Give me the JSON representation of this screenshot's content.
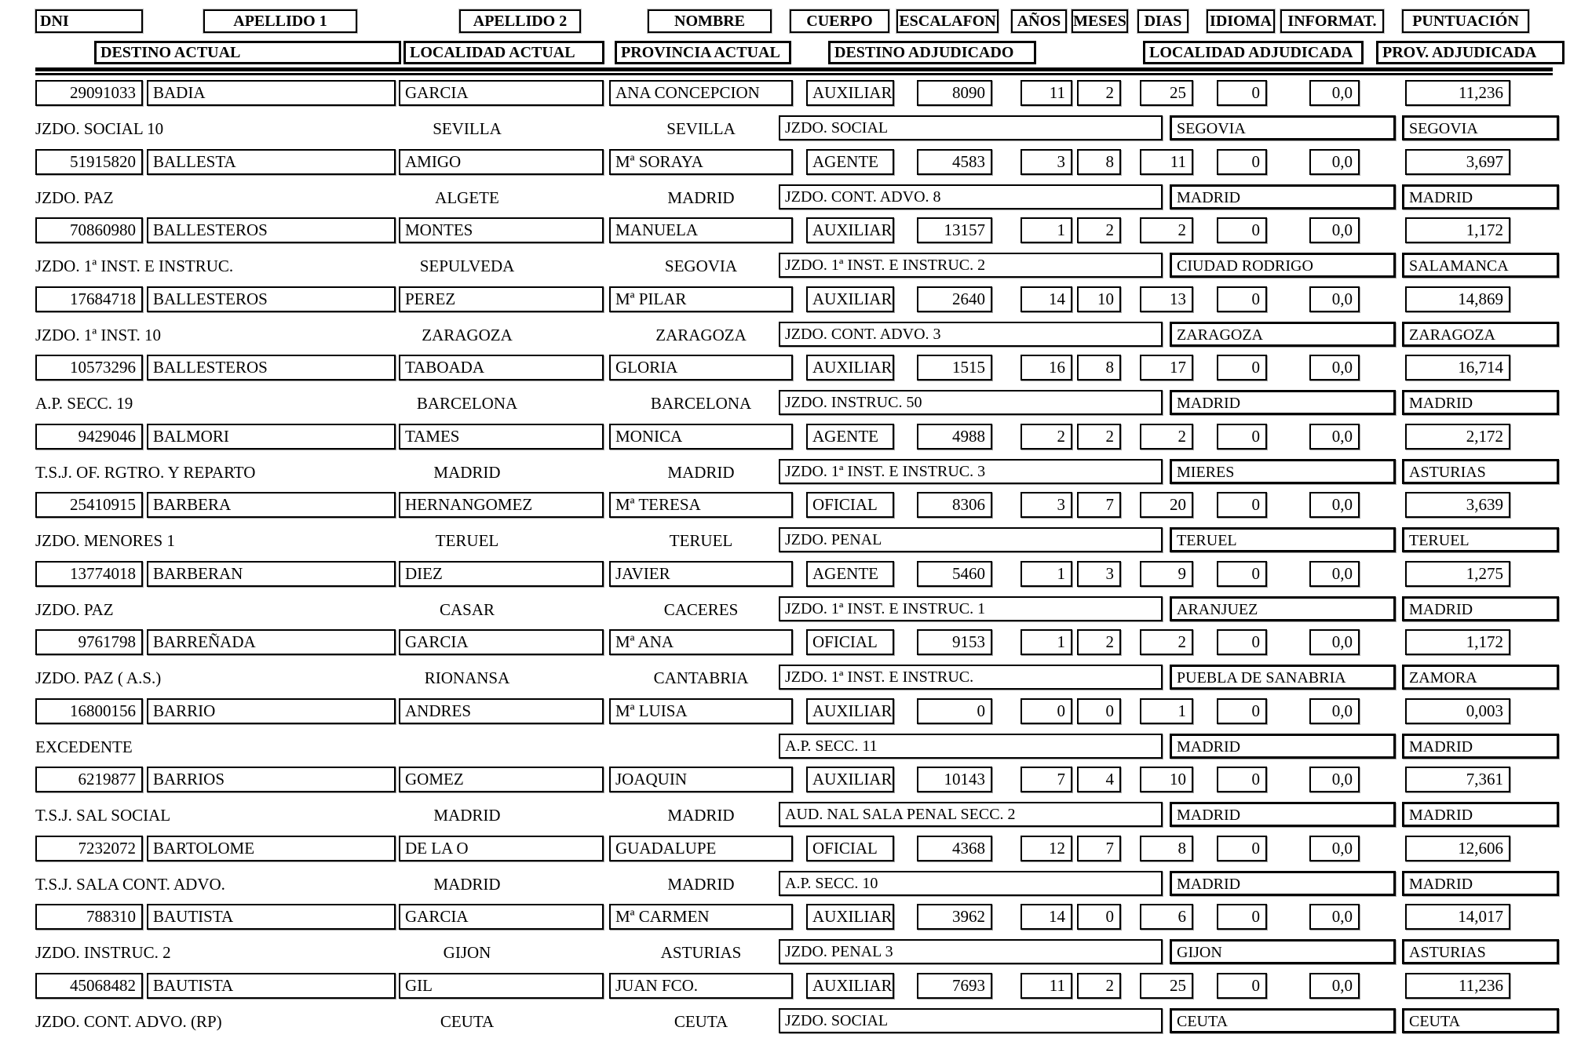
{
  "header": {
    "row1": [
      "DNI",
      "APELLIDO 1",
      "APELLIDO 2",
      "NOMBRE",
      "CUERPO",
      "ESCALAFON",
      "AÑOS",
      "MESES",
      "DIAS",
      "IDIOMA",
      "INFORMAT.",
      "PUNTUACIÓN"
    ],
    "row2": [
      "DESTINO ACTUAL",
      "LOCALIDAD ACTUAL",
      "PROVINCIA ACTUAL",
      "DESTINO ADJUDICADO",
      "LOCALIDAD ADJUDICADA",
      "PROV. ADJUDICADA"
    ]
  },
  "records": [
    {
      "dni": "29091033",
      "apellido1": "BADIA",
      "apellido2": "GARCIA",
      "nombre": "ANA CONCEPCION",
      "cuerpo": "AUXILIAR",
      "escalafon": "8090",
      "anos": "11",
      "meses": "2",
      "dias": "25",
      "idioma": "0",
      "informat": "0,0",
      "puntuacion": "11,236",
      "destino_actual": "JZDO. SOCIAL 10",
      "localidad_actual": "SEVILLA",
      "provincia_actual": "SEVILLA",
      "destino_adjudicado": "JZDO. SOCIAL",
      "localidad_adjudicada": "SEGOVIA",
      "prov_adjudicada": "SEGOVIA"
    },
    {
      "dni": "51915820",
      "apellido1": "BALLESTA",
      "apellido2": "AMIGO",
      "nombre": "Mª SORAYA",
      "cuerpo": "AGENTE",
      "escalafon": "4583",
      "anos": "3",
      "meses": "8",
      "dias": "11",
      "idioma": "0",
      "informat": "0,0",
      "puntuacion": "3,697",
      "destino_actual": "JZDO. PAZ",
      "localidad_actual": "ALGETE",
      "provincia_actual": "MADRID",
      "destino_adjudicado": "JZDO. CONT. ADVO. 8",
      "localidad_adjudicada": "MADRID",
      "prov_adjudicada": "MADRID"
    },
    {
      "dni": "70860980",
      "apellido1": "BALLESTEROS",
      "apellido2": "MONTES",
      "nombre": "MANUELA",
      "cuerpo": "AUXILIAR",
      "escalafon": "13157",
      "anos": "1",
      "meses": "2",
      "dias": "2",
      "idioma": "0",
      "informat": "0,0",
      "puntuacion": "1,172",
      "destino_actual": "JZDO. 1ª INST. E INSTRUC.",
      "localidad_actual": "SEPULVEDA",
      "provincia_actual": "SEGOVIA",
      "destino_adjudicado": "JZDO. 1ª INST. E INSTRUC. 2",
      "localidad_adjudicada": "CIUDAD RODRIGO",
      "prov_adjudicada": "SALAMANCA"
    },
    {
      "dni": "17684718",
      "apellido1": "BALLESTEROS",
      "apellido2": "PEREZ",
      "nombre": "Mª PILAR",
      "cuerpo": "AUXILIAR",
      "escalafon": "2640",
      "anos": "14",
      "meses": "10",
      "dias": "13",
      "idioma": "0",
      "informat": "0,0",
      "puntuacion": "14,869",
      "destino_actual": "JZDO. 1ª INST. 10",
      "localidad_actual": "ZARAGOZA",
      "provincia_actual": "ZARAGOZA",
      "destino_adjudicado": "JZDO. CONT. ADVO. 3",
      "localidad_adjudicada": "ZARAGOZA",
      "prov_adjudicada": "ZARAGOZA"
    },
    {
      "dni": "10573296",
      "apellido1": "BALLESTEROS",
      "apellido2": "TABOADA",
      "nombre": "GLORIA",
      "cuerpo": "AUXILIAR",
      "escalafon": "1515",
      "anos": "16",
      "meses": "8",
      "dias": "17",
      "idioma": "0",
      "informat": "0,0",
      "puntuacion": "16,714",
      "destino_actual": "A.P. SECC. 19",
      "localidad_actual": "BARCELONA",
      "provincia_actual": "BARCELONA",
      "destino_adjudicado": "JZDO. INSTRUC. 50",
      "localidad_adjudicada": "MADRID",
      "prov_adjudicada": "MADRID"
    },
    {
      "dni": "9429046",
      "apellido1": "BALMORI",
      "apellido2": "TAMES",
      "nombre": "MONICA",
      "cuerpo": "AGENTE",
      "escalafon": "4988",
      "anos": "2",
      "meses": "2",
      "dias": "2",
      "idioma": "0",
      "informat": "0,0",
      "puntuacion": "2,172",
      "destino_actual": "T.S.J. OF. RGTRO. Y REPARTO",
      "localidad_actual": "MADRID",
      "provincia_actual": "MADRID",
      "destino_adjudicado": "JZDO. 1ª INST. E INSTRUC. 3",
      "localidad_adjudicada": "MIERES",
      "prov_adjudicada": "ASTURIAS"
    },
    {
      "dni": "25410915",
      "apellido1": "BARBERA",
      "apellido2": "HERNANGOMEZ",
      "nombre": "Mª TERESA",
      "cuerpo": "OFICIAL",
      "escalafon": "8306",
      "anos": "3",
      "meses": "7",
      "dias": "20",
      "idioma": "0",
      "informat": "0,0",
      "puntuacion": "3,639",
      "destino_actual": "JZDO. MENORES 1",
      "localidad_actual": "TERUEL",
      "provincia_actual": "TERUEL",
      "destino_adjudicado": "JZDO. PENAL",
      "localidad_adjudicada": "TERUEL",
      "prov_adjudicada": "TERUEL"
    },
    {
      "dni": "13774018",
      "apellido1": "BARBERAN",
      "apellido2": "DIEZ",
      "nombre": "JAVIER",
      "cuerpo": "AGENTE",
      "escalafon": "5460",
      "anos": "1",
      "meses": "3",
      "dias": "9",
      "idioma": "0",
      "informat": "0,0",
      "puntuacion": "1,275",
      "destino_actual": "JZDO. PAZ",
      "localidad_actual": "CASAR",
      "provincia_actual": "CACERES",
      "destino_adjudicado": "JZDO. 1ª INST. E INSTRUC. 1",
      "localidad_adjudicada": "ARANJUEZ",
      "prov_adjudicada": "MADRID"
    },
    {
      "dni": "9761798",
      "apellido1": "BARREÑADA",
      "apellido2": "GARCIA",
      "nombre": "Mª ANA",
      "cuerpo": "OFICIAL",
      "escalafon": "9153",
      "anos": "1",
      "meses": "2",
      "dias": "2",
      "idioma": "0",
      "informat": "0,0",
      "puntuacion": "1,172",
      "destino_actual": "JZDO. PAZ ( A.S.)",
      "localidad_actual": "RIONANSA",
      "provincia_actual": "CANTABRIA",
      "destino_adjudicado": "JZDO. 1ª INST. E INSTRUC.",
      "localidad_adjudicada": "PUEBLA DE SANABRIA",
      "prov_adjudicada": "ZAMORA"
    },
    {
      "dni": "16800156",
      "apellido1": "BARRIO",
      "apellido2": "ANDRES",
      "nombre": "Mª LUISA",
      "cuerpo": "AUXILIAR",
      "escalafon": "0",
      "anos": "0",
      "meses": "0",
      "dias": "1",
      "idioma": "0",
      "informat": "0,0",
      "puntuacion": "0,003",
      "destino_actual": "EXCEDENTE",
      "localidad_actual": "",
      "provincia_actual": "",
      "destino_adjudicado": "A.P. SECC. 11",
      "localidad_adjudicada": "MADRID",
      "prov_adjudicada": "MADRID"
    },
    {
      "dni": "6219877",
      "apellido1": "BARRIOS",
      "apellido2": "GOMEZ",
      "nombre": "JOAQUIN",
      "cuerpo": "AUXILIAR",
      "escalafon": "10143",
      "anos": "7",
      "meses": "4",
      "dias": "10",
      "idioma": "0",
      "informat": "0,0",
      "puntuacion": "7,361",
      "destino_actual": "T.S.J. SAL SOCIAL",
      "localidad_actual": "MADRID",
      "provincia_actual": "MADRID",
      "destino_adjudicado": "AUD. NAL SALA PENAL SECC. 2",
      "localidad_adjudicada": "MADRID",
      "prov_adjudicada": "MADRID"
    },
    {
      "dni": "7232072",
      "apellido1": "BARTOLOME",
      "apellido2": "DE LA O",
      "nombre": "GUADALUPE",
      "cuerpo": "OFICIAL",
      "escalafon": "4368",
      "anos": "12",
      "meses": "7",
      "dias": "8",
      "idioma": "0",
      "informat": "0,0",
      "puntuacion": "12,606",
      "destino_actual": "T.S.J. SALA CONT. ADVO.",
      "localidad_actual": "MADRID",
      "provincia_actual": "MADRID",
      "destino_adjudicado": "A.P. SECC. 10",
      "localidad_adjudicada": "MADRID",
      "prov_adjudicada": "MADRID"
    },
    {
      "dni": "788310",
      "apellido1": "BAUTISTA",
      "apellido2": "GARCIA",
      "nombre": "Mª CARMEN",
      "cuerpo": "AUXILIAR",
      "escalafon": "3962",
      "anos": "14",
      "meses": "0",
      "dias": "6",
      "idioma": "0",
      "informat": "0,0",
      "puntuacion": "14,017",
      "destino_actual": "JZDO. INSTRUC. 2",
      "localidad_actual": "GIJON",
      "provincia_actual": "ASTURIAS",
      "destino_adjudicado": "JZDO. PENAL 3",
      "localidad_adjudicada": "GIJON",
      "prov_adjudicada": "ASTURIAS"
    },
    {
      "dni": "45068482",
      "apellido1": "BAUTISTA",
      "apellido2": "GIL",
      "nombre": "JUAN FCO.",
      "cuerpo": "AUXILIAR",
      "escalafon": "7693",
      "anos": "11",
      "meses": "2",
      "dias": "25",
      "idioma": "0",
      "informat": "0,0",
      "puntuacion": "11,236",
      "destino_actual": "JZDO. CONT. ADVO. (RP)",
      "localidad_actual": "CEUTA",
      "provincia_actual": "CEUTA",
      "destino_adjudicado": "JZDO. SOCIAL",
      "localidad_adjudicada": "CEUTA",
      "prov_adjudicada": "CEUTA"
    }
  ]
}
